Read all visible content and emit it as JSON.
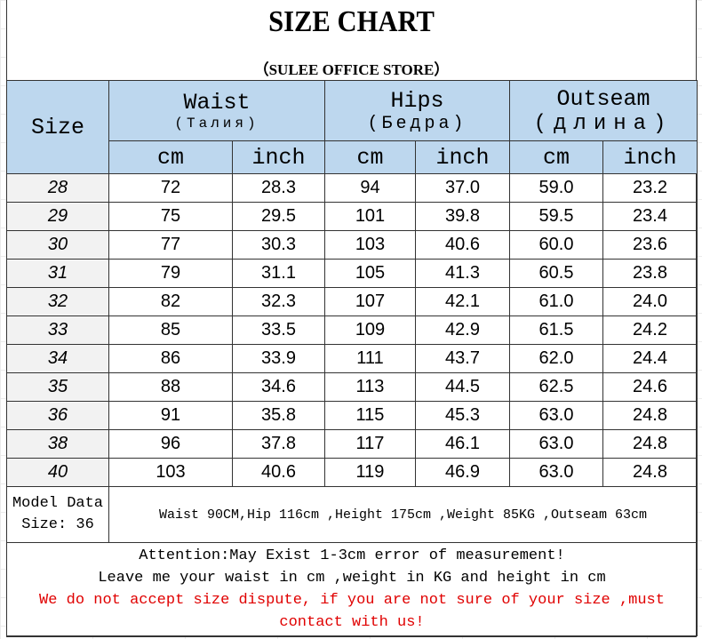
{
  "title": "SIZE CHART",
  "subtitle": "（SULEE OFFICE STORE）",
  "header": {
    "size": "Size",
    "waist": "Waist",
    "waist_ru": "(Талия)",
    "hips": "Hips",
    "hips_ru": "(Бедра)",
    "outseam": "Outseam",
    "outseam_ru": "(длина)",
    "cm": "cm",
    "inch": "inch"
  },
  "rows": [
    [
      "28",
      "72",
      "28.3",
      "94",
      "37.0",
      "59.0",
      "23.2"
    ],
    [
      "29",
      "75",
      "29.5",
      "101",
      "39.8",
      "59.5",
      "23.4"
    ],
    [
      "30",
      "77",
      "30.3",
      "103",
      "40.6",
      "60.0",
      "23.6"
    ],
    [
      "31",
      "79",
      "31.1",
      "105",
      "41.3",
      "60.5",
      "23.8"
    ],
    [
      "32",
      "82",
      "32.3",
      "107",
      "42.1",
      "61.0",
      "24.0"
    ],
    [
      "33",
      "85",
      "33.5",
      "109",
      "42.9",
      "61.5",
      "24.2"
    ],
    [
      "34",
      "86",
      "33.9",
      "111",
      "43.7",
      "62.0",
      "24.4"
    ],
    [
      "35",
      "88",
      "34.6",
      "113",
      "44.5",
      "62.5",
      "24.6"
    ],
    [
      "36",
      "91",
      "35.8",
      "115",
      "45.3",
      "63.0",
      "24.8"
    ],
    [
      "38",
      "96",
      "37.8",
      "117",
      "46.1",
      "63.0",
      "24.8"
    ],
    [
      "40",
      "103",
      "40.6",
      "119",
      "46.9",
      "63.0",
      "24.8"
    ]
  ],
  "model": {
    "label1": "Model Data",
    "label2": "Size: 36",
    "details": "Waist 90CM,Hip 116cm ,Height 175cm ,Weight 85KG ,Outseam 63cm"
  },
  "notes": {
    "line1": "Attention:May Exist 1-3cm error of measurement!",
    "line2": "Leave me your waist in cm ,weight in KG and height in cm",
    "warning": "We do not accept size dispute, if you are not sure of your size ,must contact with us!"
  },
  "colors": {
    "header_bg": "#bdd7ee",
    "warning": "#e00000"
  }
}
